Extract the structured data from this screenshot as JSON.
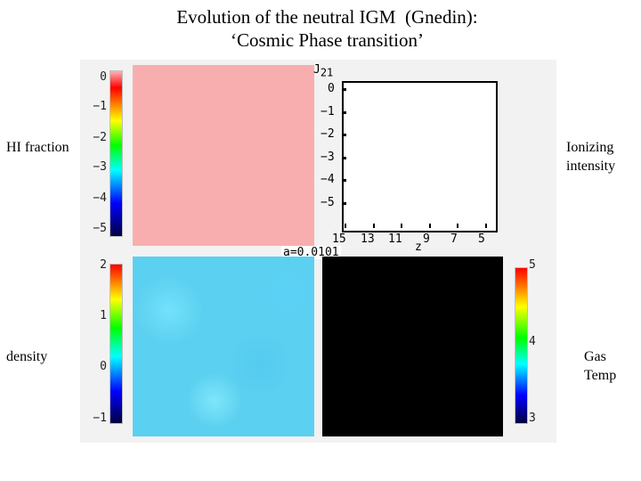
{
  "title": {
    "line1": "Evolution of the neutral IGM  (Gnedin):",
    "line2": "‘Cosmic Phase transition’"
  },
  "labels": {
    "hi_fraction": "HI fraction",
    "density": "density",
    "ionizing_intensity": "Ionizing intensity",
    "gas_temp": "Gas Temp"
  },
  "colorbars": {
    "hi_fraction": {
      "ticks": [
        "0",
        "−1",
        "−2",
        "−3",
        "−4",
        "−5"
      ]
    },
    "density": {
      "ticks": [
        "2",
        "1",
        "0",
        "−1"
      ]
    },
    "gas_temp": {
      "ticks": [
        "5",
        "4",
        "3"
      ]
    }
  },
  "plot": {
    "y_label": "J",
    "y_label_sub": "21",
    "y_ticks": [
      "0",
      "−1",
      "−2",
      "−3",
      "−4",
      "−5"
    ],
    "x_label": "z",
    "x_ticks": [
      "15",
      "13",
      "11",
      "9",
      "7",
      "5"
    ]
  },
  "scale_factor": "a=0.0101",
  "colors": {
    "hi_map": "#f8aeae",
    "density_map": "#5cd0f0",
    "temp_map": "#000000"
  }
}
